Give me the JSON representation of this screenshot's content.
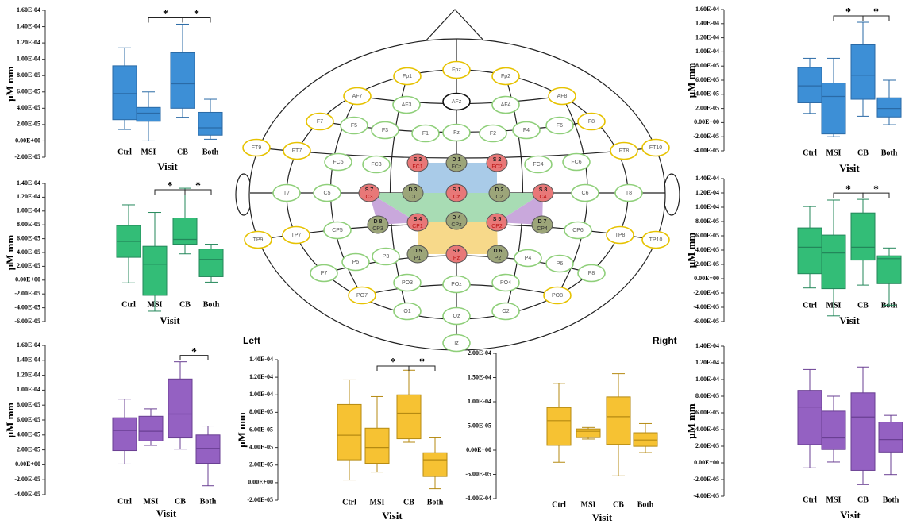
{
  "chart_data": [
    {
      "type": "box",
      "ylabel": "μM mm",
      "xlabel": "Visit",
      "categories": [
        "Ctrl",
        "MSI",
        "CB",
        "Both"
      ],
      "color": "#3d8fd6",
      "min": [
        1.4e-05,
        0,
        2.9e-05,
        2e-06
      ],
      "q1": [
        2.6e-05,
        2.4e-05,
        4e-05,
        7e-06
      ],
      "median": [
        5.8e-05,
        3.4e-05,
        7e-05,
        1.6e-05
      ],
      "q3": [
        9.2e-05,
        4.1e-05,
        0.000108,
        3.5e-05
      ],
      "max": [
        0.000114,
        6e-05,
        0.000143,
        5.1e-05
      ],
      "ylim": [
        -2e-05,
        0.00016
      ],
      "yticks": [
        {
          "value": 0.00016,
          "label": "1.60E-04"
        },
        {
          "value": 0.00014,
          "label": "1.40E-04"
        },
        {
          "value": 0.00012,
          "label": "1.20E-04"
        },
        {
          "value": 0.0001,
          "label": "1.00E-04"
        },
        {
          "value": 8e-05,
          "label": "8.00E-05"
        },
        {
          "value": 6e-05,
          "label": "6.00E-05"
        },
        {
          "value": 4e-05,
          "label": "4.00E-05"
        },
        {
          "value": 2e-05,
          "label": "2.00E-05"
        },
        {
          "value": 0,
          "label": "0.00E+00"
        },
        {
          "value": -2e-05,
          "label": "-2.00E-05"
        }
      ],
      "significance": [
        {
          "between": [
            "MSI",
            "CB"
          ],
          "label": "*"
        },
        {
          "between": [
            "CB",
            "Both"
          ],
          "label": "*"
        }
      ]
    },
    {
      "type": "box",
      "ylabel": "μM mm",
      "xlabel": "Visit",
      "categories": [
        "Ctrl",
        "MSI",
        "CB",
        "Both"
      ],
      "color": "#3d8fd6",
      "min": [
        1.3e-05,
        -2e-05,
        9e-06,
        -3e-06
      ],
      "q1": [
        2.8e-05,
        -1.6e-05,
        3.3e-05,
        8e-06
      ],
      "median": [
        5.2e-05,
        3.7e-05,
        6.7e-05,
        2e-05
      ],
      "q3": [
        7.8e-05,
        5.6e-05,
        0.00011,
        3.5e-05
      ],
      "max": [
        9.1e-05,
        9.1e-05,
        0.000142,
        6e-05
      ],
      "ylim": [
        -4e-05,
        0.00016
      ],
      "yticks": [
        {
          "value": 0.00016,
          "label": "1.60E-04"
        },
        {
          "value": 0.00014,
          "label": "1.40E-04"
        },
        {
          "value": 0.00012,
          "label": "1.20E-04"
        },
        {
          "value": 0.0001,
          "label": "1.00E-04"
        },
        {
          "value": 8e-05,
          "label": "8.00E-05"
        },
        {
          "value": 6e-05,
          "label": "6.00E-05"
        },
        {
          "value": 4e-05,
          "label": "4.00E-05"
        },
        {
          "value": 2e-05,
          "label": "2.00E-05"
        },
        {
          "value": 0,
          "label": "0.00E+00"
        },
        {
          "value": -2e-05,
          "label": "-2.00E-05"
        },
        {
          "value": -4e-05,
          "label": "-4.00E-05"
        }
      ],
      "significance": [
        {
          "between": [
            "MSI",
            "CB"
          ],
          "label": "*"
        },
        {
          "between": [
            "CB",
            "Both"
          ],
          "label": "*"
        }
      ]
    },
    {
      "type": "box",
      "ylabel": "μM mm",
      "xlabel": "Visit",
      "categories": [
        "Ctrl",
        "MSI",
        "CB",
        "Both"
      ],
      "color": "#33bd77",
      "min": [
        -4e-06,
        -4.5e-05,
        3.8e-05,
        -3e-06
      ],
      "q1": [
        3.3e-05,
        -2.2e-05,
        5.2e-05,
        5e-06
      ],
      "median": [
        5.6e-05,
        2.3e-05,
        5.9e-05,
        3e-05
      ],
      "q3": [
        7.9e-05,
        4.9e-05,
        9e-05,
        4.5e-05
      ],
      "max": [
        0.000109,
        9.8e-05,
        0.000133,
        5.2e-05
      ],
      "ylim": [
        -6e-05,
        0.00014
      ],
      "yticks": [
        {
          "value": 0.00014,
          "label": "1.40E-04"
        },
        {
          "value": 0.00012,
          "label": "1.20E-04"
        },
        {
          "value": 0.0001,
          "label": "1.00E-04"
        },
        {
          "value": 8e-05,
          "label": "8.00E-05"
        },
        {
          "value": 6e-05,
          "label": "6.00E-05"
        },
        {
          "value": 4e-05,
          "label": "4.00E-05"
        },
        {
          "value": 2e-05,
          "label": "2.00E-05"
        },
        {
          "value": 0,
          "label": "0.00E+00"
        },
        {
          "value": -2e-05,
          "label": "-2.00E-05"
        },
        {
          "value": -4e-05,
          "label": "-4.00E-05"
        },
        {
          "value": -6e-05,
          "label": "-6.00E-05"
        }
      ],
      "significance": [
        {
          "between": [
            "MSI",
            "CB"
          ],
          "label": "*"
        },
        {
          "between": [
            "CB",
            "Both"
          ],
          "label": "*"
        }
      ]
    },
    {
      "type": "box",
      "ylabel": "μM mm",
      "xlabel": "Visit",
      "categories": [
        "Ctrl",
        "MSI",
        "CB",
        "Both"
      ],
      "color": "#33bd77",
      "min": [
        -1.3e-05,
        -5.2e-05,
        -9e-06,
        -3.7e-05
      ],
      "q1": [
        7e-06,
        -1.4e-05,
        2.6e-05,
        -7e-06
      ],
      "median": [
        4.4e-05,
        3.6e-05,
        4.4e-05,
        2.8e-05
      ],
      "q3": [
        7.1e-05,
        6.1e-05,
        9.2e-05,
        3.2e-05
      ],
      "max": [
        0.000101,
        0.00011,
        0.000111,
        4.3e-05
      ],
      "ylim": [
        -6e-05,
        0.00014
      ],
      "yticks": [
        {
          "value": 0.00014,
          "label": "1.40E-04"
        },
        {
          "value": 0.00012,
          "label": "1.20E-04"
        },
        {
          "value": 0.0001,
          "label": "1.00E-04"
        },
        {
          "value": 8e-05,
          "label": "8.00E-05"
        },
        {
          "value": 6e-05,
          "label": "6.00E-05"
        },
        {
          "value": 4e-05,
          "label": "4.00E-05"
        },
        {
          "value": 2e-05,
          "label": "2.00E-05"
        },
        {
          "value": 0,
          "label": "0.00E+00"
        },
        {
          "value": -2e-05,
          "label": "-2.00E-05"
        },
        {
          "value": -4e-05,
          "label": "-4.00E-05"
        },
        {
          "value": -6e-05,
          "label": "-6.00E-05"
        }
      ],
      "significance": [
        {
          "between": [
            "MSI",
            "CB"
          ],
          "label": "*"
        },
        {
          "between": [
            "CB",
            "Both"
          ],
          "label": "*"
        }
      ]
    },
    {
      "type": "box",
      "ylabel": "μM mm",
      "xlabel": "Visit",
      "categories": [
        "Ctrl",
        "MSI",
        "CB",
        "Both"
      ],
      "color": "#9461c2",
      "min": [
        1e-06,
        2.6e-05,
        2.1e-05,
        -2.8e-05
      ],
      "q1": [
        1.9e-05,
        3.2e-05,
        3.6e-05,
        2e-06
      ],
      "median": [
        4.6e-05,
        4.5e-05,
        6.8e-05,
        2.2e-05
      ],
      "q3": [
        6.3e-05,
        6.5e-05,
        0.000115,
        4e-05
      ],
      "max": [
        8.8e-05,
        7.5e-05,
        0.000138,
        5.2e-05
      ],
      "ylim": [
        -4e-05,
        0.00016
      ],
      "yticks": [
        {
          "value": 0.00016,
          "label": "1.60E-04"
        },
        {
          "value": 0.00014,
          "label": "1.40E-04"
        },
        {
          "value": 0.00012,
          "label": "1.20E-04"
        },
        {
          "value": 0.0001,
          "label": "1.00E-04"
        },
        {
          "value": 8e-05,
          "label": "8.00E-05"
        },
        {
          "value": 6e-05,
          "label": "6.00E-05"
        },
        {
          "value": 4e-05,
          "label": "4.00E-05"
        },
        {
          "value": 2e-05,
          "label": "2.00E-05"
        },
        {
          "value": 0,
          "label": "0.00E+00"
        },
        {
          "value": -2e-05,
          "label": "-2.00E-05"
        },
        {
          "value": -4e-05,
          "label": "-4.00E-05"
        }
      ],
      "significance": [
        {
          "between": [
            "CB",
            "Both"
          ],
          "label": "*"
        }
      ]
    },
    {
      "type": "box",
      "ylabel": "μM mm",
      "xlabel": "Visit",
      "categories": [
        "Ctrl",
        "MSI",
        "CB",
        "Both"
      ],
      "color": "#f6c233",
      "min": [
        3e-06,
        1.2e-05,
        4.6e-05,
        -7e-06
      ],
      "q1": [
        2.6e-05,
        2.2e-05,
        5e-05,
        7e-06
      ],
      "median": [
        5.4e-05,
        4e-05,
        7.9e-05,
        2.6e-05
      ],
      "q3": [
        8.9e-05,
        6.2e-05,
        0.0001,
        3.4e-05
      ],
      "max": [
        0.000117,
        9.8e-05,
        0.000128,
        5.1e-05
      ],
      "ylim": [
        -2e-05,
        0.00014
      ],
      "yticks": [
        {
          "value": 0.00014,
          "label": "1.40E-04"
        },
        {
          "value": 0.00012,
          "label": "1.20E-04"
        },
        {
          "value": 0.0001,
          "label": "1.00E-04"
        },
        {
          "value": 8e-05,
          "label": "8.00E-05"
        },
        {
          "value": 6e-05,
          "label": "6.00E-05"
        },
        {
          "value": 4e-05,
          "label": "4.00E-05"
        },
        {
          "value": 2e-05,
          "label": "2.00E-05"
        },
        {
          "value": 0,
          "label": "0.00E+00"
        },
        {
          "value": -2e-05,
          "label": "-2.00E-05"
        }
      ],
      "significance": [
        {
          "between": [
            "MSI",
            "CB"
          ],
          "label": "*"
        },
        {
          "between": [
            "CB",
            "Both"
          ],
          "label": "*"
        }
      ]
    },
    {
      "type": "box",
      "xlabel": "Visit",
      "categories": [
        "Ctrl",
        "MSI",
        "CB",
        "Both"
      ],
      "color": "#f6c233",
      "min": [
        -2.5e-05,
        2.3e-05,
        -5.3e-05,
        -5e-06
      ],
      "q1": [
        1e-05,
        2.6e-05,
        1.2e-05,
        8e-06
      ],
      "median": [
        6.1e-05,
        3.9e-05,
        6.9e-05,
        2.1e-05
      ],
      "q3": [
        8.8e-05,
        4.4e-05,
        0.00011,
        3.6e-05
      ],
      "max": [
        0.000138,
        4.7e-05,
        0.000158,
        5.5e-05
      ],
      "ylim": [
        -0.0001,
        0.0002
      ],
      "yticks": [
        {
          "value": 0.0002,
          "label": "2.00E-04"
        },
        {
          "value": 0.00015,
          "label": "1.50E-04"
        },
        {
          "value": 0.0001,
          "label": "1.00E-04"
        },
        {
          "value": 5e-05,
          "label": "5.00E-05"
        },
        {
          "value": 0,
          "label": "0.00E+00"
        },
        {
          "value": -5e-05,
          "label": "-5.00E-05"
        },
        {
          "value": -0.0001,
          "label": "-1.00E-04"
        }
      ],
      "significance": []
    },
    {
      "type": "box",
      "ylabel": "μM mm",
      "xlabel": "Visit",
      "categories": [
        "Ctrl",
        "MSI",
        "CB",
        "Both"
      ],
      "color": "#9461c2",
      "min": [
        -6e-06,
        1e-06,
        -2.6e-05,
        -1.4e-05
      ],
      "q1": [
        2.2e-05,
        1.6e-05,
        -9e-06,
        1.3e-05
      ],
      "median": [
        6.7e-05,
        3e-05,
        5.5e-05,
        2.8e-05
      ],
      "q3": [
        8.7e-05,
        6.2e-05,
        8.4e-05,
        4.9e-05
      ],
      "max": [
        0.000112,
        8e-05,
        0.000115,
        5.7e-05
      ],
      "ylim": [
        -4e-05,
        0.00014
      ],
      "yticks": [
        {
          "value": 0.00014,
          "label": "1.40E-04"
        },
        {
          "value": 0.00012,
          "label": "1.20E-04"
        },
        {
          "value": 0.0001,
          "label": "1.00E-04"
        },
        {
          "value": 8e-05,
          "label": "8.00E-05"
        },
        {
          "value": 6e-05,
          "label": "6.00E-05"
        },
        {
          "value": 4e-05,
          "label": "4.00E-05"
        },
        {
          "value": 2e-05,
          "label": "2.00E-05"
        },
        {
          "value": 0,
          "label": "0.00E+00"
        },
        {
          "value": -2e-05,
          "label": "-2.00E-05"
        },
        {
          "value": -4e-05,
          "label": "-4.00E-05"
        }
      ],
      "significance": []
    }
  ],
  "diagram": {
    "left": "Left",
    "right": "Right",
    "electrodes": [
      "Fp1",
      "Fpz",
      "Fp2",
      "AF7",
      "AF3",
      "AFz",
      "AF4",
      "AF8",
      "F7",
      "F5",
      "F3",
      "F1",
      "Fz",
      "F2",
      "F4",
      "F6",
      "F8",
      "FT9",
      "FT7",
      "FC5",
      "FC3",
      "FC4",
      "FC6",
      "FT8",
      "FT10",
      "T7",
      "C5",
      "C6",
      "T8",
      "TP9",
      "TP7",
      "CP5",
      "CP6",
      "TP8",
      "TP10",
      "P7",
      "P5",
      "P3",
      "P4",
      "P6",
      "P8",
      "PO7",
      "PO3",
      "POz",
      "PO4",
      "PO8",
      "O1",
      "Oz",
      "O2",
      "Iz"
    ],
    "optodes": [
      {
        "label": "S 3",
        "site": "FC1"
      },
      {
        "label": "D 1",
        "site": "FCz"
      },
      {
        "label": "S 2",
        "site": "FC2"
      },
      {
        "label": "S 7",
        "site": "C3"
      },
      {
        "label": "D 3",
        "site": "C1"
      },
      {
        "label": "S 1",
        "site": "Cz"
      },
      {
        "label": "D 2",
        "site": "C2"
      },
      {
        "label": "S 8",
        "site": "C4"
      },
      {
        "label": "D 8",
        "site": "CP3"
      },
      {
        "label": "S 4",
        "site": "CP1"
      },
      {
        "label": "D 4",
        "site": "CPz"
      },
      {
        "label": "S 5",
        "site": "CP2"
      },
      {
        "label": "D 7",
        "site": "CP4"
      },
      {
        "label": "D 5",
        "site": "P1"
      },
      {
        "label": "S 6",
        "site": "Pz"
      },
      {
        "label": "D 6",
        "site": "P2"
      }
    ]
  }
}
